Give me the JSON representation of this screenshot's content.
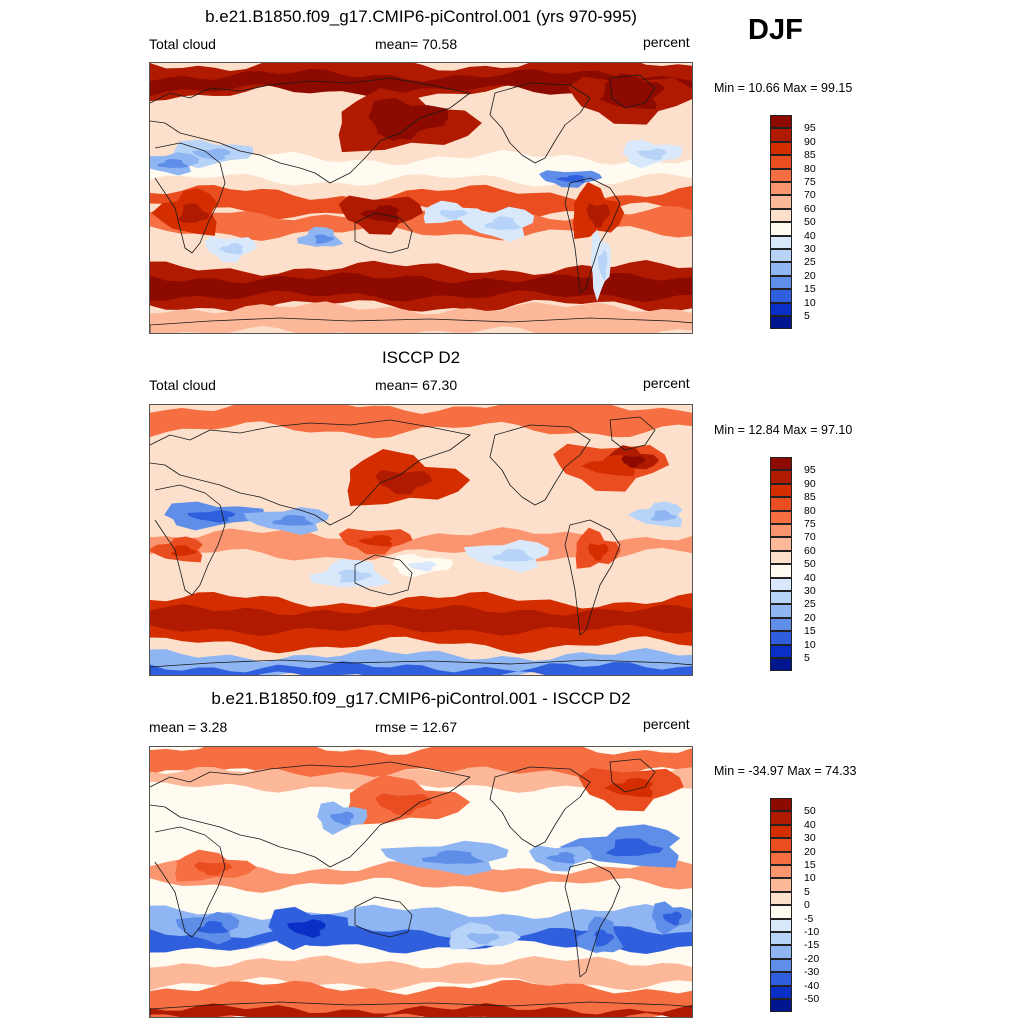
{
  "season": "DJF",
  "units": "percent",
  "land_outline_color": "#1a1a1a",
  "panels": [
    {
      "title": "b.e21.B1850.f09_g17.CMIP6-piControl.001 (yrs 970-995)",
      "left_label": "Total cloud",
      "center_label": "mean=  70.58",
      "right_label": "percent",
      "minmax": "Min =  10.66 Max =  99.15",
      "colorbar": {
        "labels": [
          "95",
          "90",
          "85",
          "80",
          "75",
          "70",
          "60",
          "50",
          "40",
          "30",
          "25",
          "20",
          "15",
          "10",
          "5"
        ],
        "colors": [
          "#8c0a00",
          "#b01a00",
          "#d42e00",
          "#ea4d1f",
          "#f56f43",
          "#fb9570",
          "#fdb89a",
          "#fde0cc",
          "#fffbf0",
          "#d9e9fb",
          "#b7d4f8",
          "#8fb6f2",
          "#5f8ee9",
          "#2f5fdc",
          "#0a2fc6",
          "#00168f"
        ]
      },
      "field": "model"
    },
    {
      "title": "ISCCP D2",
      "left_label": "Total cloud",
      "center_label": "mean=  67.30",
      "right_label": "percent",
      "minmax": "Min =  12.84 Max =  97.10",
      "colorbar": {
        "labels": [
          "95",
          "90",
          "85",
          "80",
          "75",
          "70",
          "60",
          "50",
          "40",
          "30",
          "25",
          "20",
          "15",
          "10",
          "5"
        ],
        "colors": [
          "#8c0a00",
          "#b01a00",
          "#d42e00",
          "#ea4d1f",
          "#f56f43",
          "#fb9570",
          "#fdb89a",
          "#fde0cc",
          "#fffbf0",
          "#d9e9fb",
          "#b7d4f8",
          "#8fb6f2",
          "#5f8ee9",
          "#2f5fdc",
          "#0a2fc6",
          "#00168f"
        ]
      },
      "field": "obs"
    },
    {
      "title": "b.e21.B1850.f09_g17.CMIP6-piControl.001 - ISCCP D2",
      "left_label": "mean =   3.28",
      "center_label": "rmse =  12.67",
      "right_label": "percent",
      "minmax": "Min = -34.97 Max =  74.33",
      "colorbar": {
        "labels": [
          "50",
          "40",
          "30",
          "20",
          "15",
          "10",
          "5",
          "0",
          "-5",
          "-10",
          "-15",
          "-20",
          "-30",
          "-40",
          "-50"
        ],
        "colors": [
          "#8c0a00",
          "#b01a00",
          "#d42e00",
          "#ea4d1f",
          "#f56f43",
          "#fb9570",
          "#fdb89a",
          "#fde0cc",
          "#fffbf0",
          "#d9e9fb",
          "#b7d4f8",
          "#8fb6f2",
          "#5f8ee9",
          "#2f5fdc",
          "#0a2fc6",
          "#00168f"
        ]
      },
      "field": "diff"
    }
  ]
}
